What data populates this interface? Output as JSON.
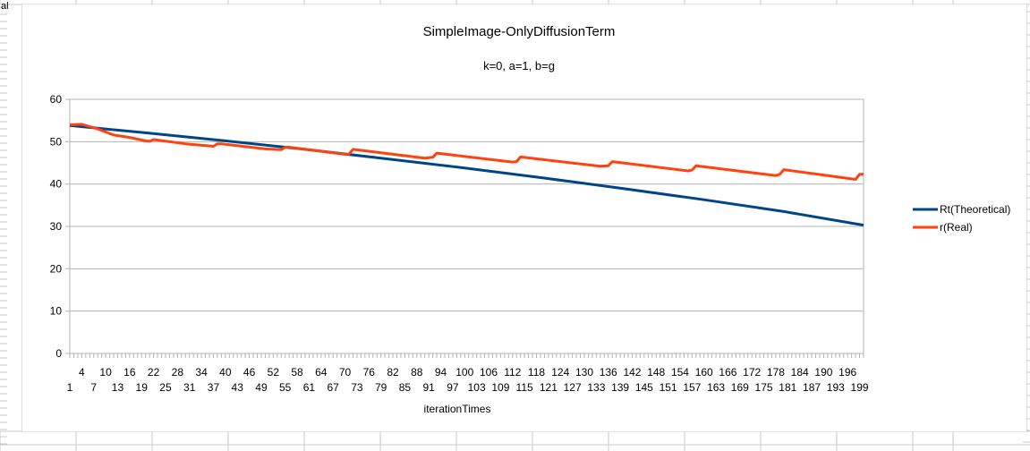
{
  "sheet": {
    "corner_label": "al"
  },
  "chart_data": {
    "type": "line",
    "title": "SimpleImage-OnlyDiffusionTerm",
    "subtitle": "k=0, a=1, b=g",
    "xlabel": "iterationTimes",
    "ylabel": "",
    "ylim": [
      0,
      60
    ],
    "yticks": [
      0,
      10,
      20,
      30,
      40,
      50,
      60
    ],
    "grid": true,
    "legend_position": "right",
    "x_range": [
      1,
      200
    ],
    "xtick_labels_row1": [
      4,
      10,
      16,
      22,
      28,
      34,
      40,
      46,
      52,
      58,
      64,
      70,
      76,
      82,
      88,
      94,
      100,
      106,
      112,
      118,
      124,
      130,
      136,
      142,
      148,
      154,
      160,
      166,
      172,
      178,
      184,
      190,
      196
    ],
    "xtick_labels_row2": [
      1,
      7,
      13,
      19,
      25,
      31,
      37,
      43,
      49,
      55,
      61,
      67,
      73,
      79,
      85,
      91,
      97,
      103,
      109,
      115,
      121,
      127,
      133,
      139,
      145,
      151,
      157,
      163,
      169,
      175,
      181,
      187,
      193,
      199
    ],
    "series": [
      {
        "name": "Rt(Theoretical)",
        "color": "#004586",
        "x": [
          1,
          20,
          40,
          60,
          80,
          100,
          120,
          140,
          160,
          180,
          200
        ],
        "values": [
          53.8,
          52.1,
          50.2,
          48.2,
          46.0,
          43.8,
          41.4,
          38.9,
          36.3,
          33.5,
          30.3
        ]
      },
      {
        "name": "r(Real)",
        "color": "#ff420e",
        "x": [
          1,
          4,
          8,
          12,
          16,
          20,
          21,
          22,
          30,
          37,
          38,
          39,
          50,
          54,
          55,
          56,
          70,
          71,
          72,
          90,
          92,
          93,
          112,
          113,
          114,
          134,
          136,
          137,
          156,
          157,
          158,
          178,
          179,
          180,
          198,
          199,
          200
        ],
        "values": [
          54.0,
          54.1,
          53.0,
          51.6,
          51.0,
          50.2,
          50.1,
          50.5,
          49.5,
          48.9,
          49.5,
          49.5,
          48.3,
          48.1,
          48.7,
          48.7,
          47.0,
          47.1,
          48.2,
          46.1,
          46.3,
          47.3,
          45.2,
          45.3,
          46.4,
          44.2,
          44.3,
          45.3,
          43.1,
          43.3,
          44.3,
          42.0,
          42.3,
          43.4,
          41.1,
          42.3,
          42.3
        ]
      }
    ]
  }
}
